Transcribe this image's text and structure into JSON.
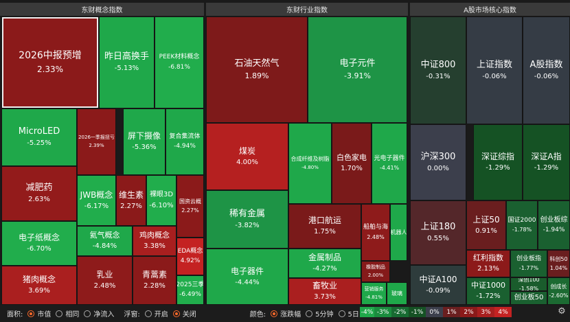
{
  "sections": {
    "concept": "东财概念指数",
    "industry": "东财行业指数",
    "index": "A股市场核心指数"
  },
  "tiles": [
    {
      "name": "2026中报预增",
      "value": "2.33%",
      "color": "#8b1a1a"
    },
    {
      "name": "昨日高换手",
      "value": "-5.13%",
      "color": "#1fa84a"
    },
    {
      "name": "PEEK材料概念",
      "value": "-6.81%",
      "color": "#21ad4c"
    },
    {
      "name": "MicroLED",
      "value": "-5.25%",
      "color": "#1fa84a"
    },
    {
      "name": "2026一季报扭亏",
      "value": "2.39%",
      "color": "#8b1a1a"
    },
    {
      "name": "屏下摄像",
      "value": "-5.36%",
      "color": "#1fa84a"
    },
    {
      "name": "复合集流体",
      "value": "-4.94%",
      "color": "#1fa84a"
    },
    {
      "name": "减肥药",
      "value": "2.63%",
      "color": "#931b1b"
    },
    {
      "name": "JWB概念",
      "value": "-6.17%",
      "color": "#21ad4c"
    },
    {
      "name": "维生素",
      "value": "2.27%",
      "color": "#8b1a1a"
    },
    {
      "name": "裸眼3D",
      "value": "-6.10%",
      "color": "#21ad4c"
    },
    {
      "name": "国资云概",
      "value": "2.27%",
      "color": "#8b1a1a"
    },
    {
      "name": "电子纸概念",
      "value": "-6.70%",
      "color": "#21ad4c"
    },
    {
      "name": "氦气概念",
      "value": "-4.84%",
      "color": "#1fa84a"
    },
    {
      "name": "鸡肉概念",
      "value": "3.38%",
      "color": "#a81f1f"
    },
    {
      "name": "EDA概念",
      "value": "4.92%",
      "color": "#c42222"
    },
    {
      "name": "猪肉概念",
      "value": "3.69%",
      "color": "#aa1f1f"
    },
    {
      "name": "乳业",
      "value": "2.48%",
      "color": "#8e1b1b"
    },
    {
      "name": "青蒿素",
      "value": "2.28%",
      "color": "#8b1a1a"
    },
    {
      "name": "2025三季",
      "value": "-6.49%",
      "color": "#21ad4c"
    },
    {
      "name": "石油天然气",
      "value": "1.89%",
      "color": "#7e1a1a"
    },
    {
      "name": "电子元件",
      "value": "-3.91%",
      "color": "#1e9446"
    },
    {
      "name": "煤炭",
      "value": "4.00%",
      "color": "#b52020"
    },
    {
      "name": "合成纤维及树脂",
      "value": "-4.80%",
      "color": "#1fa84a"
    },
    {
      "name": "白色家电",
      "value": "1.70%",
      "color": "#7a1a1a"
    },
    {
      "name": "光电子器件",
      "value": "-4.41%",
      "color": "#1fa84a"
    },
    {
      "name": "稀有金属",
      "value": "-3.82%",
      "color": "#1e9446"
    },
    {
      "name": "港口航运",
      "value": "1.75%",
      "color": "#7a1a1a"
    },
    {
      "name": "船舶与海",
      "value": "2.48%",
      "color": "#8e1b1b"
    },
    {
      "name": "机器人",
      "value": "",
      "color": "#1fa84a"
    },
    {
      "name": "金属制品",
      "value": "-4.27%",
      "color": "#1fa84a"
    },
    {
      "name": "橡胶制品",
      "value": "2.00%",
      "color": "#851a1a"
    },
    {
      "name": "电子器件",
      "value": "-4.44%",
      "color": "#1fa84a"
    },
    {
      "name": "畜牧业",
      "value": "3.73%",
      "color": "#aa1f1f"
    },
    {
      "name": "营销服务",
      "value": "-4.81%",
      "color": "#1fa84a"
    },
    {
      "name": "玻璃",
      "value": "",
      "color": "#1fa84a"
    },
    {
      "name": "中证800",
      "value": "-0.31%",
      "color": "#253f2f"
    },
    {
      "name": "上证指数",
      "value": "-0.06%",
      "color": "#353c45"
    },
    {
      "name": "A股指数",
      "value": "-0.06%",
      "color": "#353c45"
    },
    {
      "name": "沪深300",
      "value": "0.00%",
      "color": "#3c3f4c"
    },
    {
      "name": "深证综指",
      "value": "-1.29%",
      "color": "#155224"
    },
    {
      "name": "深证A指",
      "value": "-1.29%",
      "color": "#155224"
    },
    {
      "name": "上证180",
      "value": "0.55%",
      "color": "#54272a"
    },
    {
      "name": "上证50",
      "value": "0.91%",
      "color": "#6a1e1f"
    },
    {
      "name": "国证2000",
      "value": "-1.78%",
      "color": "#1a6030"
    },
    {
      "name": "创业板综",
      "value": "-1.94%",
      "color": "#1a6030"
    },
    {
      "name": "红利指数",
      "value": "2.13%",
      "color": "#8c1a1a"
    },
    {
      "name": "创业板指",
      "value": "-1.77%",
      "color": "#1a6030"
    },
    {
      "name": "科创50",
      "value": "1.04%",
      "color": "#6a1e1f"
    },
    {
      "name": "中证A100",
      "value": "-0.09%",
      "color": "#2e3c3c"
    },
    {
      "name": "中证1000",
      "value": "-1.72%",
      "color": "#1a6030"
    },
    {
      "name": "深创100",
      "value": "-1.58%",
      "color": "#1a5c2c"
    },
    {
      "name": "创业板50",
      "value": "",
      "color": "#1a6030"
    },
    {
      "name": "创成长",
      "value": "-2.60%",
      "color": "#1c6a32"
    }
  ],
  "controls": {
    "area_label": "面积:",
    "area_options": [
      "市值",
      "相同",
      "净流入"
    ],
    "float_label": "浮窗:",
    "float_options": [
      "开启",
      "关闭"
    ],
    "color_label": "颜色:",
    "color_options": [
      "涨跌幅",
      "5分钟",
      "5日"
    ],
    "legend": [
      {
        "label": "-4%",
        "color": "#1fa84a"
      },
      {
        "label": "-3%",
        "color": "#1a8c3e"
      },
      {
        "label": "-2%",
        "color": "#176b32"
      },
      {
        "label": "-1%",
        "color": "#155224"
      },
      {
        "label": "0%",
        "color": "#3c3f4c"
      },
      {
        "label": "1%",
        "color": "#6a1e1f"
      },
      {
        "label": "2%",
        "color": "#8b1a1a"
      },
      {
        "label": "3%",
        "color": "#a81f1f"
      },
      {
        "label": "4%",
        "color": "#c42222"
      }
    ]
  },
  "accent_color": "#ff6a2a"
}
